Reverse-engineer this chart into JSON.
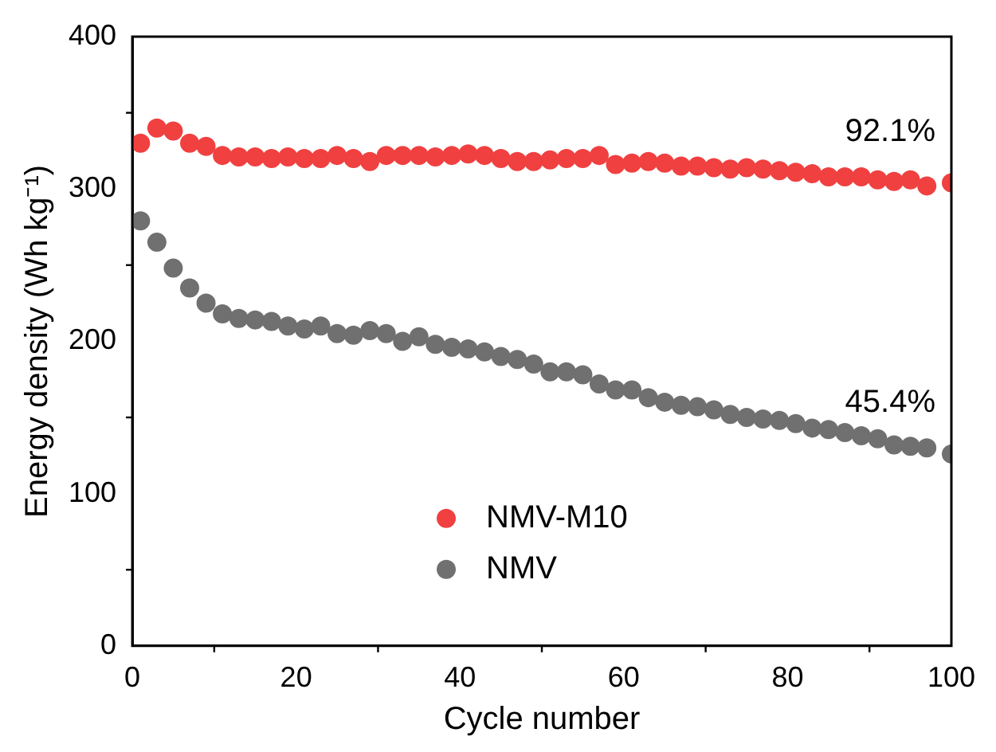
{
  "chart_data": {
    "type": "scatter",
    "xlabel": "Cycle number",
    "ylabel": "Energy density (Wh kg⁻¹)",
    "x": [
      1,
      3,
      5,
      7,
      9,
      11,
      13,
      15,
      17,
      19,
      21,
      23,
      25,
      27,
      29,
      31,
      33,
      35,
      37,
      39,
      41,
      43,
      45,
      47,
      49,
      51,
      53,
      55,
      57,
      59,
      61,
      63,
      65,
      67,
      69,
      71,
      73,
      75,
      77,
      79,
      81,
      83,
      85,
      87,
      89,
      91,
      93,
      95,
      97,
      100
    ],
    "series": [
      {
        "name": "NMV-M10",
        "color": "#f04040",
        "values": [
          330,
          340,
          338,
          330,
          328,
          322,
          321,
          321,
          320,
          321,
          320,
          320,
          322,
          320,
          318,
          322,
          322,
          322,
          321,
          322,
          323,
          322,
          320,
          318,
          318,
          319,
          320,
          320,
          322,
          316,
          317,
          318,
          317,
          315,
          315,
          314,
          313,
          314,
          313,
          312,
          311,
          310,
          308,
          308,
          308,
          306,
          305,
          306,
          302,
          304
        ]
      },
      {
        "name": "NMV",
        "color": "#707070",
        "values": [
          279,
          265,
          248,
          235,
          225,
          218,
          215,
          214,
          213,
          210,
          208,
          210,
          205,
          204,
          207,
          205,
          200,
          203,
          198,
          196,
          195,
          193,
          190,
          188,
          185,
          180,
          180,
          178,
          172,
          168,
          168,
          163,
          160,
          158,
          157,
          155,
          152,
          150,
          149,
          148,
          146,
          143,
          142,
          140,
          138,
          136,
          132,
          131,
          130,
          126
        ]
      }
    ],
    "xlim": [
      0,
      100
    ],
    "xticks": [
      0,
      20,
      40,
      60,
      80,
      100
    ],
    "ylim": [
      0,
      400
    ],
    "yticks": [
      0,
      100,
      200,
      300,
      400
    ],
    "grid": false,
    "legend": "bottom",
    "marker": "circle",
    "annotations": [
      "92.1%",
      "45.4%"
    ]
  }
}
